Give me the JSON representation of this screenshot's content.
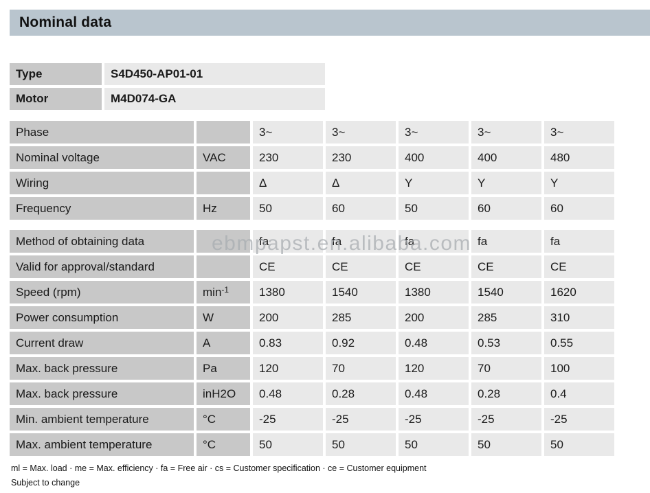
{
  "page": {
    "title": "Nominal data",
    "watermark": "ebmpapst.en.alibaba.com",
    "footnote": "ml = Max. load · me = Max. efficiency · fa = Free air · cs = Customer specification · ce = Customer equipment",
    "footnote2": "Subject to change"
  },
  "colors": {
    "title_bar_bg": "#b9c5ce",
    "label_cell_bg": "#c8c8c8",
    "value_cell_bg": "#e9e9e9",
    "text": "#1a1a1a",
    "watermark": "#a9aeb2"
  },
  "identity": {
    "rows": [
      {
        "label": "Type",
        "value": "S4D450-AP01-01"
      },
      {
        "label": "Motor",
        "value": "M4D074-GA"
      }
    ]
  },
  "spec_table": {
    "block1": [
      {
        "label": "Phase",
        "unit": "",
        "unit_sup": "",
        "values": [
          "3~",
          "3~",
          "3~",
          "3~",
          "3~"
        ]
      },
      {
        "label": "Nominal voltage",
        "unit": "VAC",
        "unit_sup": "",
        "values": [
          "230",
          "230",
          "400",
          "400",
          "480"
        ]
      },
      {
        "label": "Wiring",
        "unit": "",
        "unit_sup": "",
        "values": [
          "Δ",
          "Δ",
          "Y",
          "Y",
          "Y"
        ]
      },
      {
        "label": "Frequency",
        "unit": "Hz",
        "unit_sup": "",
        "values": [
          "50",
          "60",
          "50",
          "60",
          "60"
        ]
      }
    ],
    "block2": [
      {
        "label": "Method of obtaining data",
        "unit": "",
        "unit_sup": "",
        "values": [
          "fa",
          "fa",
          "fa",
          "fa",
          "fa"
        ]
      },
      {
        "label": "Valid for approval/standard",
        "unit": "",
        "unit_sup": "",
        "values": [
          "CE",
          "CE",
          "CE",
          "CE",
          "CE"
        ]
      },
      {
        "label": "Speed (rpm)",
        "unit": "min",
        "unit_sup": "-1",
        "values": [
          "1380",
          "1540",
          "1380",
          "1540",
          "1620"
        ]
      },
      {
        "label": "Power consumption",
        "unit": "W",
        "unit_sup": "",
        "values": [
          "200",
          "285",
          "200",
          "285",
          "310"
        ]
      },
      {
        "label": "Current draw",
        "unit": "A",
        "unit_sup": "",
        "values": [
          "0.83",
          "0.92",
          "0.48",
          "0.53",
          "0.55"
        ]
      },
      {
        "label": "Max. back pressure",
        "unit": "Pa",
        "unit_sup": "",
        "values": [
          "120",
          "70",
          "120",
          "70",
          "100"
        ]
      },
      {
        "label": "Max. back pressure",
        "unit": "inH2O",
        "unit_sup": "",
        "values": [
          "0.48",
          "0.28",
          "0.48",
          "0.28",
          "0.4"
        ]
      },
      {
        "label": "Min. ambient temperature",
        "unit": "°C",
        "unit_sup": "",
        "values": [
          "-25",
          "-25",
          "-25",
          "-25",
          "-25"
        ]
      },
      {
        "label": "Max. ambient temperature",
        "unit": "°C",
        "unit_sup": "",
        "values": [
          "50",
          "50",
          "50",
          "50",
          "50"
        ]
      }
    ]
  }
}
